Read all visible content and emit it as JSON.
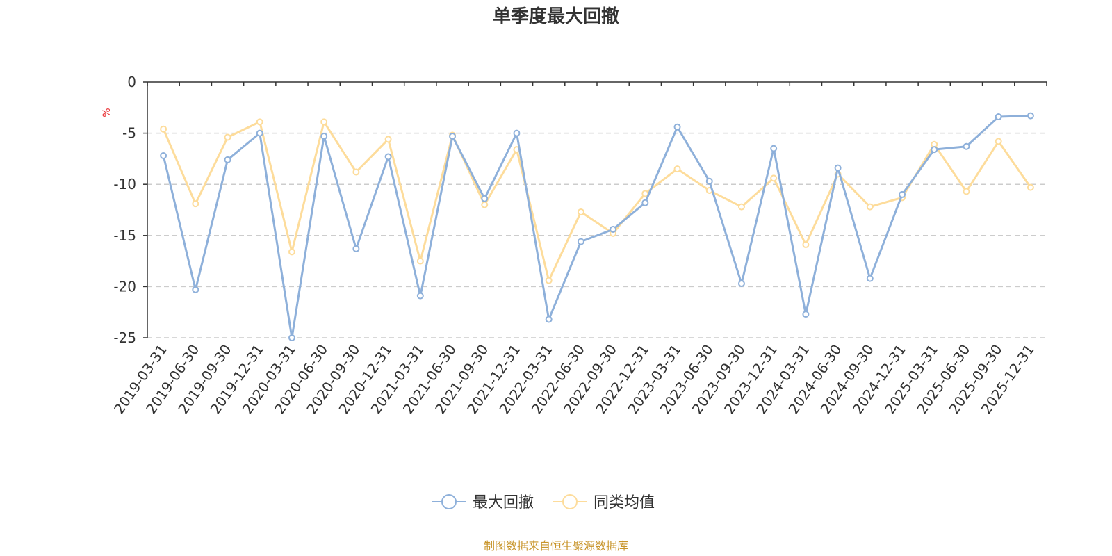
{
  "chart_data": {
    "type": "line",
    "title": "单季度最大回撤",
    "y_unit": "%",
    "ylim": [
      -25,
      0
    ],
    "y_ticks": [
      0,
      -5,
      -10,
      -15,
      -20,
      -25
    ],
    "grid": "dashed horizontal",
    "legend_position": "bottom-center",
    "categories": [
      "2019-03-31",
      "2019-06-30",
      "2019-09-30",
      "2019-12-31",
      "2020-03-31",
      "2020-06-30",
      "2020-09-30",
      "2020-12-31",
      "2021-03-31",
      "2021-06-30",
      "2021-09-30",
      "2021-12-31",
      "2022-03-31",
      "2022-06-30",
      "2022-09-30",
      "2022-12-31",
      "2023-03-31",
      "2023-06-30",
      "2023-09-30",
      "2023-12-31",
      "2024-03-31",
      "2024-06-30",
      "2024-09-30",
      "2024-12-31",
      "2025-03-31",
      "2025-06-30",
      "2025-09-30",
      "2025-12-31"
    ],
    "series": [
      {
        "name": "最大回撤",
        "color": "#8eb0da",
        "values": [
          -7.2,
          -20.3,
          -7.6,
          -5.0,
          -25.0,
          -5.3,
          -16.3,
          -7.3,
          -20.9,
          -5.3,
          -11.4,
          -5.0,
          -23.2,
          -15.6,
          -14.4,
          -11.8,
          -4.4,
          -9.7,
          -19.7,
          -6.5,
          -22.7,
          -8.4,
          -19.2,
          -11.0,
          -6.6,
          -6.3,
          -3.4,
          -3.3
        ]
      },
      {
        "name": "同类均值",
        "color": "#fddc9b",
        "values": [
          -4.6,
          -11.9,
          -5.4,
          -3.9,
          -16.6,
          -3.9,
          -8.8,
          -5.6,
          -17.5,
          -5.2,
          -12.0,
          -6.6,
          -19.4,
          -12.7,
          -14.8,
          -10.9,
          -8.5,
          -10.6,
          -12.2,
          -9.4,
          -15.9,
          -9.0,
          -12.2,
          -11.3,
          -6.1,
          -10.7,
          -5.8,
          -10.3
        ]
      }
    ]
  },
  "footer": {
    "source_text": "制图数据来自恒生聚源数据库"
  }
}
